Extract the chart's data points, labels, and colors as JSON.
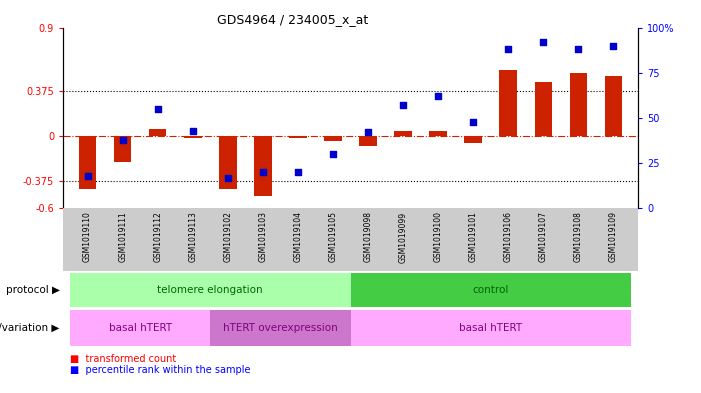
{
  "title": "GDS4964 / 234005_x_at",
  "samples": [
    "GSM1019110",
    "GSM1019111",
    "GSM1019112",
    "GSM1019113",
    "GSM1019102",
    "GSM1019103",
    "GSM1019104",
    "GSM1019105",
    "GSM1019098",
    "GSM1019099",
    "GSM1019100",
    "GSM1019101",
    "GSM1019106",
    "GSM1019107",
    "GSM1019108",
    "GSM1019109"
  ],
  "red_values": [
    -0.44,
    -0.22,
    0.06,
    -0.02,
    -0.44,
    -0.5,
    -0.02,
    -0.04,
    -0.08,
    0.04,
    0.04,
    -0.06,
    0.55,
    0.45,
    0.52,
    0.5
  ],
  "blue_values": [
    18,
    38,
    55,
    43,
    17,
    20,
    20,
    30,
    42,
    57,
    62,
    48,
    88,
    92,
    88,
    90
  ],
  "ylim_left": [
    -0.6,
    0.9
  ],
  "ylim_right": [
    0,
    100
  ],
  "yticks_left": [
    -0.6,
    -0.375,
    0,
    0.375,
    0.9
  ],
  "yticks_right": [
    0,
    25,
    50,
    75,
    100
  ],
  "ytick_labels_left": [
    "-0.6",
    "-0.375",
    "0",
    "0.375",
    "0.9"
  ],
  "ytick_labels_right": [
    "0",
    "25",
    "50",
    "75",
    "100%"
  ],
  "dotted_lines": [
    0.375,
    -0.375
  ],
  "bar_color": "#CC2200",
  "dot_color": "#0000CC",
  "bg_color": "#FFFFFF",
  "protocol_telomere": {
    "label": "telomere elongation",
    "start": 0,
    "end": 7,
    "color": "#AAFFAA"
  },
  "protocol_control": {
    "label": "control",
    "start": 8,
    "end": 15,
    "color": "#44CC44"
  },
  "geno_basal1": {
    "label": "basal hTERT",
    "start": 0,
    "end": 3,
    "color": "#FFAAFF"
  },
  "geno_htert": {
    "label": "hTERT overexpression",
    "start": 4,
    "end": 7,
    "color": "#CC77CC"
  },
  "geno_basal2": {
    "label": "basal hTERT",
    "start": 8,
    "end": 15,
    "color": "#FFAAFF"
  },
  "legend_red": "transformed count",
  "legend_blue": "percentile rank within the sample",
  "xlabel_protocol": "protocol",
  "xlabel_genotype": "genotype/variation",
  "sample_bg": "#CCCCCC",
  "label_area_bg": "#FFFFFF"
}
